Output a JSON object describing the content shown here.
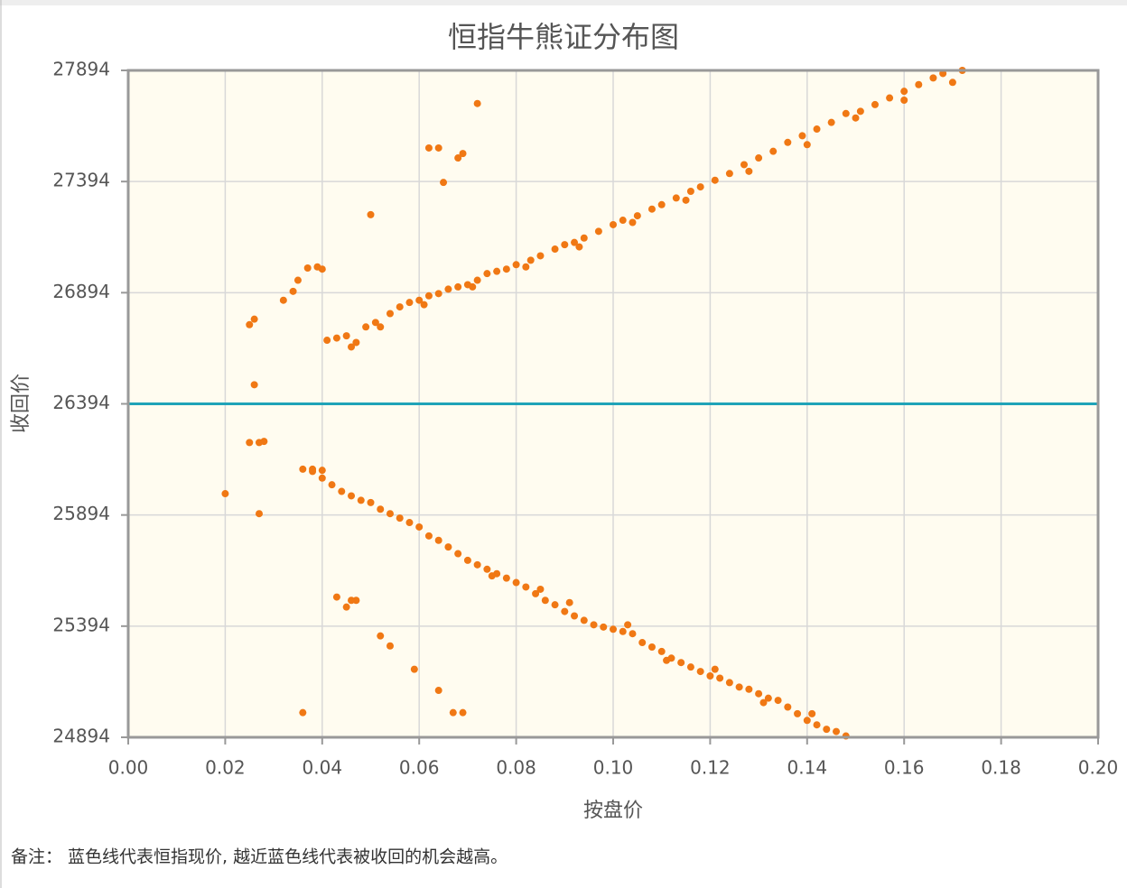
{
  "chart_data": {
    "type": "scatter",
    "title": "恒指牛熊证分布图",
    "x_label": "按盘价",
    "y_label": "收回价",
    "note": "备注： 蓝色线代表恒指现价, 越近蓝色线代表被收回的机会越高。",
    "color": "#f07814",
    "hline": {
      "value": 26394,
      "color": "#1fa3b8"
    },
    "grid": true,
    "xlim": [
      0,
      0.2
    ],
    "ylim": [
      24894,
      27894
    ],
    "xticks": [
      {
        "value": 0,
        "label": "0.00"
      },
      0.02,
      0.04,
      0.06,
      0.08,
      {
        "value": 0.1,
        "label": "0.10"
      },
      0.12,
      0.14,
      0.16,
      0.18,
      {
        "value": 0.2,
        "label": "0.20"
      }
    ],
    "yticks": [
      24894,
      25394,
      25894,
      26394,
      26894,
      27394,
      27894
    ],
    "x": [
      0.02,
      0.025,
      0.026,
      0.026,
      0.025,
      0.027,
      0.028,
      0.027,
      0.032,
      0.034,
      0.035,
      0.037,
      0.039,
      0.04,
      0.05,
      0.062,
      0.064,
      0.065,
      0.068,
      0.069,
      0.072,
      0.043,
      0.045,
      0.046,
      0.047,
      0.052,
      0.054,
      0.059,
      0.064,
      0.036,
      0.067,
      0.069,
      0.036,
      0.038,
      0.04,
      0.041,
      0.043,
      0.045,
      0.047,
      0.049,
      0.051,
      0.054,
      0.056,
      0.058,
      0.06,
      0.062,
      0.064,
      0.066,
      0.068,
      0.07,
      0.072,
      0.074,
      0.076,
      0.078,
      0.08,
      0.083,
      0.085,
      0.088,
      0.09,
      0.092,
      0.094,
      0.097,
      0.1,
      0.102,
      0.105,
      0.108,
      0.11,
      0.113,
      0.116,
      0.118,
      0.121,
      0.124,
      0.127,
      0.13,
      0.133,
      0.136,
      0.139,
      0.142,
      0.145,
      0.148,
      0.151,
      0.154,
      0.157,
      0.16,
      0.163,
      0.166,
      0.168,
      0.17,
      0.172,
      0.16,
      0.15,
      0.14,
      0.128,
      0.115,
      0.104,
      0.093,
      0.082,
      0.071,
      0.061,
      0.052,
      0.046,
      0.038,
      0.04,
      0.042,
      0.044,
      0.046,
      0.048,
      0.05,
      0.052,
      0.054,
      0.056,
      0.058,
      0.06,
      0.062,
      0.064,
      0.066,
      0.068,
      0.07,
      0.072,
      0.074,
      0.076,
      0.078,
      0.08,
      0.082,
      0.084,
      0.086,
      0.088,
      0.09,
      0.092,
      0.094,
      0.096,
      0.098,
      0.1,
      0.102,
      0.104,
      0.106,
      0.108,
      0.11,
      0.112,
      0.114,
      0.116,
      0.118,
      0.12,
      0.122,
      0.124,
      0.126,
      0.128,
      0.13,
      0.132,
      0.134,
      0.136,
      0.138,
      0.14,
      0.142,
      0.144,
      0.146,
      0.148,
      0.091,
      0.103,
      0.111,
      0.121,
      0.131,
      0.141,
      0.085,
      0.075
    ],
    "values": [
      25990,
      26750,
      26775,
      26480,
      26220,
      26220,
      26225,
      25900,
      26860,
      26900,
      26950,
      27005,
      27010,
      27000,
      27245,
      27545,
      27545,
      27390,
      27500,
      27520,
      27745,
      25525,
      25480,
      25510,
      25510,
      25350,
      25305,
      25200,
      25105,
      25005,
      25005,
      25005,
      26100,
      26100,
      26095,
      26680,
      26690,
      26700,
      26670,
      26740,
      26760,
      26800,
      26830,
      26850,
      26860,
      26880,
      26890,
      26910,
      26920,
      26930,
      26950,
      26980,
      26990,
      27000,
      27020,
      27040,
      27060,
      27090,
      27110,
      27120,
      27140,
      27170,
      27200,
      27220,
      27240,
      27270,
      27290,
      27320,
      27350,
      27370,
      27400,
      27430,
      27470,
      27500,
      27530,
      27570,
      27600,
      27630,
      27660,
      27700,
      27710,
      27740,
      27770,
      27800,
      27830,
      27860,
      27880,
      27840,
      27894,
      27760,
      27680,
      27560,
      27440,
      27310,
      27210,
      27100,
      27010,
      26920,
      26840,
      26740,
      26650,
      26090,
      26060,
      26030,
      26000,
      25980,
      25960,
      25950,
      25920,
      25900,
      25880,
      25860,
      25840,
      25800,
      25780,
      25750,
      25720,
      25690,
      25670,
      25650,
      25630,
      25610,
      25590,
      25570,
      25540,
      25510,
      25490,
      25460,
      25440,
      25420,
      25400,
      25390,
      25380,
      25370,
      25360,
      25320,
      25300,
      25280,
      25250,
      25230,
      25210,
      25190,
      25170,
      25160,
      25140,
      25120,
      25110,
      25090,
      25070,
      25060,
      25030,
      25000,
      24970,
      24950,
      24930,
      24920,
      24900,
      25500,
      25400,
      25240,
      25200,
      25050,
      25000,
      25560,
      25620
    ]
  }
}
